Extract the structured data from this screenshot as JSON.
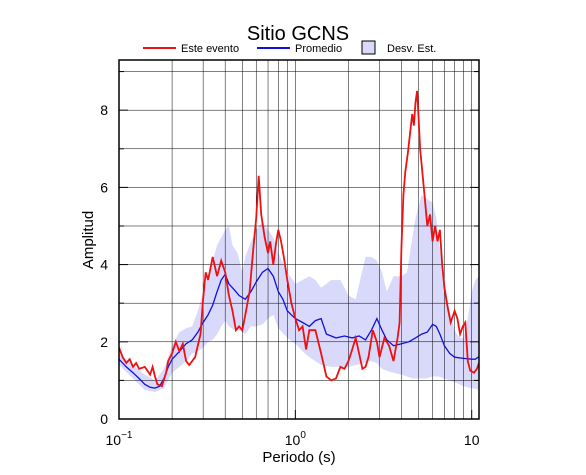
{
  "chart_data": {
    "type": "line",
    "title": "Sitio GCNS",
    "xlabel": "Periodo (s)",
    "ylabel": "Amplitud",
    "x_scale": "log",
    "xlim": [
      0.1,
      11
    ],
    "ylim": [
      0,
      9.3
    ],
    "x_ticks": [
      0.1,
      1,
      10
    ],
    "y_ticks": [
      0,
      2,
      4,
      6,
      8
    ],
    "grid": true,
    "legend_position": "top",
    "legend": [
      {
        "label": "Este evento",
        "kind": "line",
        "color": "#ee1111"
      },
      {
        "label": "Promedio",
        "kind": "line",
        "color": "#1111dd"
      },
      {
        "label": "Desv. Est.",
        "kind": "band",
        "color": "#d9d9fb"
      }
    ],
    "series": [
      {
        "name": "Este evento",
        "color": "#ee1111",
        "points": [
          [
            0.1,
            1.85
          ],
          [
            0.105,
            1.6
          ],
          [
            0.11,
            1.45
          ],
          [
            0.115,
            1.55
          ],
          [
            0.12,
            1.35
          ],
          [
            0.125,
            1.45
          ],
          [
            0.13,
            1.3
          ],
          [
            0.14,
            1.35
          ],
          [
            0.15,
            1.15
          ],
          [
            0.155,
            1.35
          ],
          [
            0.16,
            1.1
          ],
          [
            0.165,
            0.9
          ],
          [
            0.175,
            0.85
          ],
          [
            0.185,
            1.2
          ],
          [
            0.19,
            1.5
          ],
          [
            0.2,
            1.7
          ],
          [
            0.21,
            2.0
          ],
          [
            0.22,
            1.75
          ],
          [
            0.23,
            1.95
          ],
          [
            0.24,
            1.5
          ],
          [
            0.25,
            1.4
          ],
          [
            0.27,
            1.6
          ],
          [
            0.29,
            2.2
          ],
          [
            0.3,
            3.1
          ],
          [
            0.31,
            3.8
          ],
          [
            0.32,
            3.6
          ],
          [
            0.33,
            3.9
          ],
          [
            0.34,
            4.2
          ],
          [
            0.36,
            3.7
          ],
          [
            0.38,
            4.1
          ],
          [
            0.4,
            3.8
          ],
          [
            0.42,
            3.2
          ],
          [
            0.44,
            2.8
          ],
          [
            0.46,
            2.3
          ],
          [
            0.48,
            2.4
          ],
          [
            0.5,
            2.3
          ],
          [
            0.52,
            2.7
          ],
          [
            0.55,
            3.3
          ],
          [
            0.58,
            4.5
          ],
          [
            0.6,
            5.2
          ],
          [
            0.62,
            6.3
          ],
          [
            0.64,
            5.3
          ],
          [
            0.67,
            4.7
          ],
          [
            0.7,
            4.3
          ],
          [
            0.72,
            4.6
          ],
          [
            0.75,
            4.0
          ],
          [
            0.78,
            4.6
          ],
          [
            0.8,
            4.9
          ],
          [
            0.83,
            4.6
          ],
          [
            0.86,
            4.2
          ],
          [
            0.9,
            3.6
          ],
          [
            0.95,
            3.0
          ],
          [
            1.0,
            2.6
          ],
          [
            1.05,
            2.3
          ],
          [
            1.1,
            2.4
          ],
          [
            1.15,
            1.8
          ],
          [
            1.2,
            2.3
          ],
          [
            1.3,
            2.3
          ],
          [
            1.4,
            1.7
          ],
          [
            1.5,
            1.1
          ],
          [
            1.6,
            1.0
          ],
          [
            1.7,
            1.05
          ],
          [
            1.8,
            1.35
          ],
          [
            1.9,
            1.3
          ],
          [
            2.0,
            1.5
          ],
          [
            2.1,
            1.8
          ],
          [
            2.2,
            2.1
          ],
          [
            2.3,
            1.7
          ],
          [
            2.4,
            1.3
          ],
          [
            2.5,
            1.35
          ],
          [
            2.6,
            1.6
          ],
          [
            2.75,
            2.3
          ],
          [
            2.9,
            2.0
          ],
          [
            3.0,
            1.6
          ],
          [
            3.2,
            2.1
          ],
          [
            3.4,
            1.9
          ],
          [
            3.6,
            1.5
          ],
          [
            3.8,
            2.1
          ],
          [
            3.9,
            2.5
          ],
          [
            4.0,
            4.5
          ],
          [
            4.1,
            5.8
          ],
          [
            4.2,
            6.4
          ],
          [
            4.35,
            6.9
          ],
          [
            4.5,
            7.5
          ],
          [
            4.6,
            7.9
          ],
          [
            4.7,
            7.6
          ],
          [
            4.8,
            8.2
          ],
          [
            4.9,
            8.5
          ],
          [
            5.0,
            7.8
          ],
          [
            5.1,
            7.0
          ],
          [
            5.2,
            6.6
          ],
          [
            5.4,
            5.8
          ],
          [
            5.6,
            5.0
          ],
          [
            5.8,
            5.3
          ],
          [
            6.0,
            4.6
          ],
          [
            6.2,
            5.0
          ],
          [
            6.4,
            4.6
          ],
          [
            6.6,
            4.9
          ],
          [
            6.8,
            4.0
          ],
          [
            7.0,
            3.4
          ],
          [
            7.3,
            2.9
          ],
          [
            7.6,
            2.5
          ],
          [
            8.0,
            2.8
          ],
          [
            8.3,
            2.6
          ],
          [
            8.6,
            2.2
          ],
          [
            8.9,
            2.4
          ],
          [
            9.2,
            2.5
          ],
          [
            9.5,
            1.5
          ],
          [
            9.8,
            1.25
          ],
          [
            10.3,
            1.2
          ],
          [
            10.7,
            1.3
          ],
          [
            11.0,
            1.45
          ]
        ]
      },
      {
        "name": "Promedio",
        "color": "#1111dd",
        "points": [
          [
            0.1,
            1.55
          ],
          [
            0.11,
            1.35
          ],
          [
            0.12,
            1.2
          ],
          [
            0.13,
            1.05
          ],
          [
            0.14,
            0.9
          ],
          [
            0.15,
            0.82
          ],
          [
            0.16,
            0.8
          ],
          [
            0.17,
            0.85
          ],
          [
            0.18,
            1.05
          ],
          [
            0.19,
            1.35
          ],
          [
            0.2,
            1.55
          ],
          [
            0.22,
            1.75
          ],
          [
            0.24,
            1.95
          ],
          [
            0.26,
            2.05
          ],
          [
            0.28,
            2.25
          ],
          [
            0.3,
            2.5
          ],
          [
            0.32,
            2.7
          ],
          [
            0.34,
            2.95
          ],
          [
            0.36,
            3.3
          ],
          [
            0.38,
            3.6
          ],
          [
            0.4,
            3.75
          ],
          [
            0.42,
            3.5
          ],
          [
            0.45,
            3.35
          ],
          [
            0.48,
            3.2
          ],
          [
            0.52,
            3.1
          ],
          [
            0.56,
            3.3
          ],
          [
            0.6,
            3.55
          ],
          [
            0.65,
            3.8
          ],
          [
            0.7,
            3.9
          ],
          [
            0.75,
            3.7
          ],
          [
            0.8,
            3.3
          ],
          [
            0.85,
            3.1
          ],
          [
            0.9,
            2.8
          ],
          [
            0.95,
            2.7
          ],
          [
            1.0,
            2.6
          ],
          [
            1.1,
            2.5
          ],
          [
            1.2,
            2.4
          ],
          [
            1.3,
            2.55
          ],
          [
            1.4,
            2.6
          ],
          [
            1.5,
            2.2
          ],
          [
            1.7,
            2.1
          ],
          [
            1.9,
            2.15
          ],
          [
            2.1,
            2.1
          ],
          [
            2.3,
            2.15
          ],
          [
            2.5,
            2.05
          ],
          [
            2.7,
            2.3
          ],
          [
            2.9,
            2.6
          ],
          [
            3.1,
            2.3
          ],
          [
            3.3,
            2.05
          ],
          [
            3.6,
            1.9
          ],
          [
            4.0,
            1.95
          ],
          [
            4.4,
            2.0
          ],
          [
            4.8,
            2.1
          ],
          [
            5.2,
            2.2
          ],
          [
            5.6,
            2.25
          ],
          [
            6.0,
            2.45
          ],
          [
            6.3,
            2.4
          ],
          [
            6.6,
            2.2
          ],
          [
            7.0,
            1.9
          ],
          [
            7.5,
            1.7
          ],
          [
            8.0,
            1.6
          ],
          [
            9.0,
            1.57
          ],
          [
            10.0,
            1.55
          ],
          [
            10.5,
            1.55
          ],
          [
            11.0,
            1.62
          ]
        ]
      }
    ],
    "band": {
      "name": "Desv. Est.",
      "color": "#d9d9fb",
      "upper": [
        [
          0.1,
          1.7
        ],
        [
          0.12,
          1.4
        ],
        [
          0.14,
          1.15
        ],
        [
          0.16,
          1.0
        ],
        [
          0.18,
          1.3
        ],
        [
          0.2,
          1.9
        ],
        [
          0.22,
          2.25
        ],
        [
          0.24,
          2.35
        ],
        [
          0.26,
          2.4
        ],
        [
          0.28,
          2.8
        ],
        [
          0.3,
          3.3
        ],
        [
          0.32,
          3.7
        ],
        [
          0.34,
          4.1
        ],
        [
          0.36,
          4.5
        ],
        [
          0.38,
          4.7
        ],
        [
          0.4,
          4.9
        ],
        [
          0.42,
          5.0
        ],
        [
          0.44,
          4.5
        ],
        [
          0.47,
          4.3
        ],
        [
          0.5,
          3.8
        ],
        [
          0.52,
          4.2
        ],
        [
          0.55,
          4.5
        ],
        [
          0.6,
          4.9
        ],
        [
          0.65,
          5.1
        ],
        [
          0.7,
          4.9
        ],
        [
          0.75,
          4.7
        ],
        [
          0.8,
          4.3
        ],
        [
          0.9,
          3.8
        ],
        [
          1.0,
          3.5
        ],
        [
          1.1,
          3.6
        ],
        [
          1.2,
          3.7
        ],
        [
          1.3,
          3.6
        ],
        [
          1.4,
          3.4
        ],
        [
          1.6,
          3.6
        ],
        [
          1.8,
          3.6
        ],
        [
          2.0,
          3.2
        ],
        [
          2.2,
          3.1
        ],
        [
          2.5,
          4.2
        ],
        [
          2.7,
          4.2
        ],
        [
          2.9,
          4.1
        ],
        [
          3.1,
          3.8
        ],
        [
          3.3,
          3.3
        ],
        [
          3.6,
          3.7
        ],
        [
          4.0,
          3.7
        ],
        [
          4.3,
          3.8
        ],
        [
          4.5,
          4.4
        ],
        [
          4.8,
          5.2
        ],
        [
          5.2,
          5.8
        ],
        [
          5.6,
          5.7
        ],
        [
          6.0,
          5.6
        ],
        [
          6.3,
          5.2
        ],
        [
          6.6,
          4.4
        ],
        [
          7.0,
          3.6
        ],
        [
          7.5,
          2.8
        ],
        [
          8.0,
          2.3
        ],
        [
          8.5,
          2.1
        ],
        [
          9.0,
          2.1
        ],
        [
          9.5,
          2.6
        ],
        [
          10.0,
          3.3
        ],
        [
          10.5,
          3.6
        ],
        [
          11.0,
          3.7
        ]
      ],
      "lower": [
        [
          0.1,
          1.4
        ],
        [
          0.12,
          1.05
        ],
        [
          0.14,
          0.75
        ],
        [
          0.16,
          0.7
        ],
        [
          0.18,
          0.8
        ],
        [
          0.2,
          1.2
        ],
        [
          0.22,
          1.35
        ],
        [
          0.24,
          1.5
        ],
        [
          0.26,
          1.7
        ],
        [
          0.28,
          1.75
        ],
        [
          0.3,
          1.85
        ],
        [
          0.32,
          2.0
        ],
        [
          0.34,
          2.05
        ],
        [
          0.36,
          2.2
        ],
        [
          0.38,
          2.4
        ],
        [
          0.4,
          2.55
        ],
        [
          0.42,
          2.4
        ],
        [
          0.45,
          2.3
        ],
        [
          0.48,
          2.3
        ],
        [
          0.52,
          2.2
        ],
        [
          0.56,
          2.4
        ],
        [
          0.6,
          2.4
        ],
        [
          0.65,
          2.45
        ],
        [
          0.7,
          2.6
        ],
        [
          0.75,
          2.7
        ],
        [
          0.8,
          2.35
        ],
        [
          0.9,
          2.1
        ],
        [
          1.0,
          1.95
        ],
        [
          1.1,
          1.75
        ],
        [
          1.2,
          1.6
        ],
        [
          1.3,
          1.5
        ],
        [
          1.4,
          1.4
        ],
        [
          1.6,
          1.35
        ],
        [
          1.8,
          1.35
        ],
        [
          2.0,
          1.35
        ],
        [
          2.2,
          1.4
        ],
        [
          2.5,
          1.45
        ],
        [
          2.7,
          1.5
        ],
        [
          2.9,
          1.45
        ],
        [
          3.1,
          1.3
        ],
        [
          3.3,
          1.25
        ],
        [
          3.6,
          1.2
        ],
        [
          4.0,
          1.15
        ],
        [
          4.3,
          1.1
        ],
        [
          4.6,
          1.05
        ],
        [
          5.0,
          1.05
        ],
        [
          5.5,
          1.05
        ],
        [
          6.0,
          1.1
        ],
        [
          6.5,
          1.1
        ],
        [
          7.0,
          1.05
        ],
        [
          7.5,
          1.0
        ],
        [
          8.0,
          0.95
        ],
        [
          8.5,
          0.9
        ],
        [
          9.0,
          0.85
        ],
        [
          10.0,
          0.8
        ],
        [
          10.5,
          0.78
        ],
        [
          11.0,
          0.75
        ]
      ]
    }
  }
}
